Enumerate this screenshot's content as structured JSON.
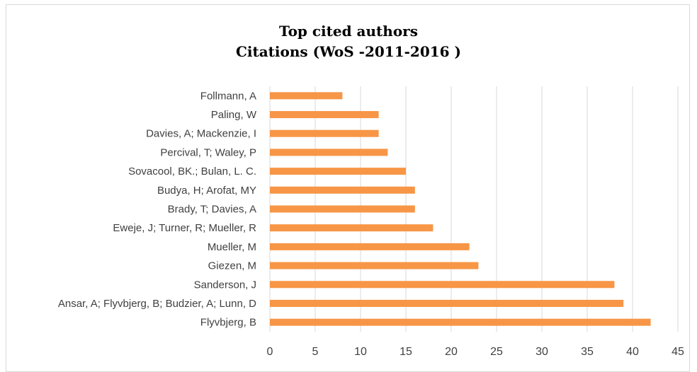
{
  "chart_data": {
    "type": "bar",
    "orientation": "horizontal",
    "title_line1": "Top cited authors",
    "title_line2": "Citations (WoS -2011-2016 )",
    "categories": [
      "Follmann, A",
      "Paling, W",
      "Davies, A; Mackenzie, I",
      "Percival, T; Waley, P",
      "Sovacool, BK.; Bulan, L. C.",
      "Budya, H; Arofat, MY",
      "Brady, T; Davies, A",
      "Eweje, J; Turner, R; Mueller, R",
      "Mueller, M",
      "Giezen, M",
      "Sanderson, J",
      "Ansar, A; Flyvbjerg, B; Budzier, A; Lunn, D",
      "Flyvbjerg, B"
    ],
    "values": [
      8,
      12,
      12,
      13,
      15,
      16,
      16,
      18,
      22,
      23,
      38,
      39,
      42
    ],
    "xlim": [
      0,
      45
    ],
    "xticks": [
      "0",
      "5",
      "10",
      "15",
      "20",
      "25",
      "30",
      "35",
      "40",
      "45"
    ],
    "grid": "vertical",
    "legend": "none",
    "bar_color": "#f79646",
    "grid_color": "#d9d9d9"
  }
}
